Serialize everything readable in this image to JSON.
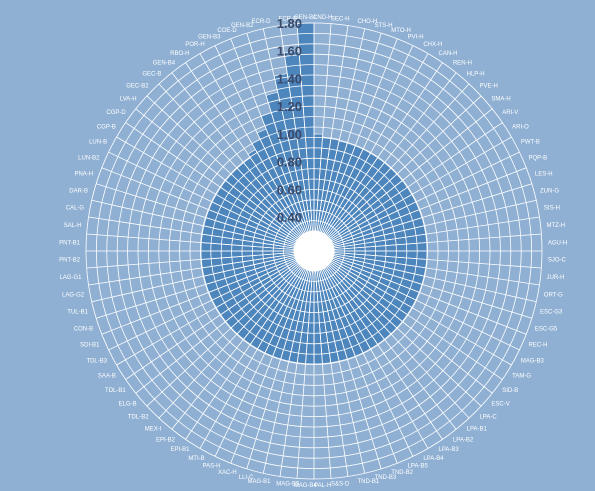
{
  "chart_data": {
    "type": "radial_bar",
    "categories": [
      "CND-H",
      "SEC-H",
      "CHO-H",
      "STS-H",
      "MTO-H",
      "PVI-H",
      "CHX-H",
      "CAN-H",
      "REN-H",
      "HLP-H",
      "PVE-H",
      "SMA-H",
      "ARI-V",
      "ARI-O",
      "PWT-B",
      "PQP-B",
      "LES-H",
      "ZUN-G",
      "SIS-H",
      "MTZ-H",
      "AGU-H",
      "SJO-C",
      "JUR-H",
      "ORT-G",
      "ESC-G3",
      "ESC-G5",
      "REC-H",
      "MAG-B3",
      "TAM-G",
      "SID-B",
      "ESC-V",
      "LPA-C",
      "LPA-B1",
      "LPA-B2",
      "LPA-B3",
      "LPA-B4",
      "LPA-B5",
      "TND-B2",
      "TND-B3",
      "TND-B1",
      "S&S-D",
      "PAL-H",
      "MAG-B4",
      "MAG-B5",
      "MAG-B1",
      "LLI-C",
      "XAC-H",
      "PAS-H",
      "MTI-B",
      "EPI-B1",
      "EPI-B2",
      "MEX-I",
      "TDL-B2",
      "ELG-B",
      "TDL-B1",
      "SAA-B",
      "TDL-B3",
      "SDI-B1",
      "CON-B",
      "TUL-B1",
      "LAG-G2",
      "LAG-G1",
      "PNT-B2",
      "PNT-B1",
      "SAL-H",
      "CAL-G",
      "DAR-B",
      "PNA-H",
      "LUN-B2",
      "LUN-B",
      "CGP-B",
      "CGP-D",
      "LVA-H",
      "GEC-B2",
      "GEC-B",
      "GEN-B4",
      "RBO-H",
      "POR-H",
      "GEN-B3",
      "COE-D",
      "GEN-B2",
      "ECR-D",
      "ECR-B",
      "GEN-B1"
    ],
    "values": [
      1.0,
      0.98,
      0.98,
      0.97,
      0.97,
      0.97,
      0.97,
      0.97,
      0.97,
      0.97,
      0.97,
      0.97,
      0.97,
      0.97,
      0.97,
      0.97,
      0.97,
      0.97,
      0.97,
      0.97,
      0.97,
      0.97,
      0.97,
      0.97,
      0.97,
      0.97,
      0.97,
      0.97,
      0.97,
      0.97,
      0.97,
      0.97,
      0.97,
      0.97,
      0.97,
      0.97,
      0.97,
      0.97,
      0.97,
      0.97,
      0.97,
      0.97,
      0.97,
      0.97,
      0.97,
      0.97,
      0.97,
      0.97,
      0.97,
      0.97,
      0.97,
      0.97,
      0.97,
      0.97,
      0.97,
      0.97,
      0.97,
      0.97,
      0.97,
      0.97,
      0.97,
      0.97,
      0.97,
      0.97,
      0.97,
      0.97,
      0.97,
      0.97,
      0.97,
      0.97,
      0.97,
      0.97,
      0.97,
      0.97,
      0.97,
      0.97,
      1.0,
      1.05,
      1.1,
      1.2,
      1.33,
      1.45,
      1.6,
      1.8
    ],
    "yticks": [
      0.4,
      0.6,
      0.8,
      1.0,
      1.2,
      1.4,
      1.6,
      1.8
    ],
    "ytick_labels": [
      "0.40",
      "0.60",
      "0.80",
      "1.00",
      "1.20",
      "1.40",
      "1.60",
      "1.80"
    ],
    "ylim": [
      0.3,
      1.8
    ],
    "grid": true,
    "colors": {
      "background": "#8fb0d3",
      "bar": "#4d85bd",
      "grid": "#ffffff",
      "tick_text": "#3a4a6a",
      "category_text": "#ffffff"
    }
  }
}
